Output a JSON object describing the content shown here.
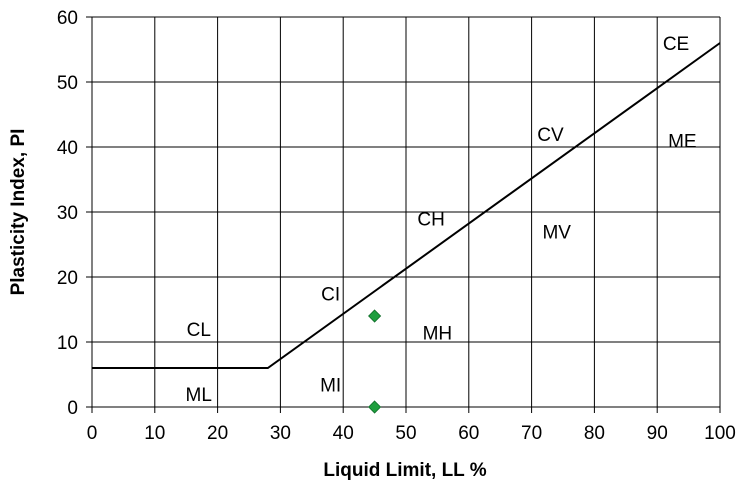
{
  "chart_data": {
    "type": "scatter",
    "title": "",
    "xlabel": "Liquid Limit, LL %",
    "ylabel": "Plasticity Index, PI",
    "xlim": [
      0,
      100
    ],
    "ylim": [
      0,
      60
    ],
    "xticks": [
      0,
      10,
      20,
      30,
      40,
      50,
      60,
      70,
      80,
      90,
      100
    ],
    "yticks": [
      0,
      10,
      20,
      30,
      40,
      50,
      60
    ],
    "grid": true,
    "legend": "none",
    "a_line": {
      "x": [
        0,
        28,
        100
      ],
      "y": [
        6,
        6,
        56
      ],
      "color": "#000000"
    },
    "points": {
      "x": [
        45,
        45
      ],
      "y": [
        14,
        0
      ],
      "marker": "diamond",
      "color": "#1e9e3e"
    },
    "zone_labels": [
      {
        "text": "CE",
        "x": 93,
        "y": 56
      },
      {
        "text": "CV",
        "x": 73,
        "y": 42
      },
      {
        "text": "ME",
        "x": 94,
        "y": 41
      },
      {
        "text": "CH",
        "x": 54,
        "y": 29
      },
      {
        "text": "MV",
        "x": 74,
        "y": 27
      },
      {
        "text": "CI",
        "x": 38,
        "y": 17.5
      },
      {
        "text": "CL",
        "x": 17,
        "y": 12
      },
      {
        "text": "MH",
        "x": 55,
        "y": 11.5
      },
      {
        "text": "ML",
        "x": 17,
        "y": 2
      },
      {
        "text": "MI",
        "x": 38,
        "y": 3.5
      }
    ]
  }
}
